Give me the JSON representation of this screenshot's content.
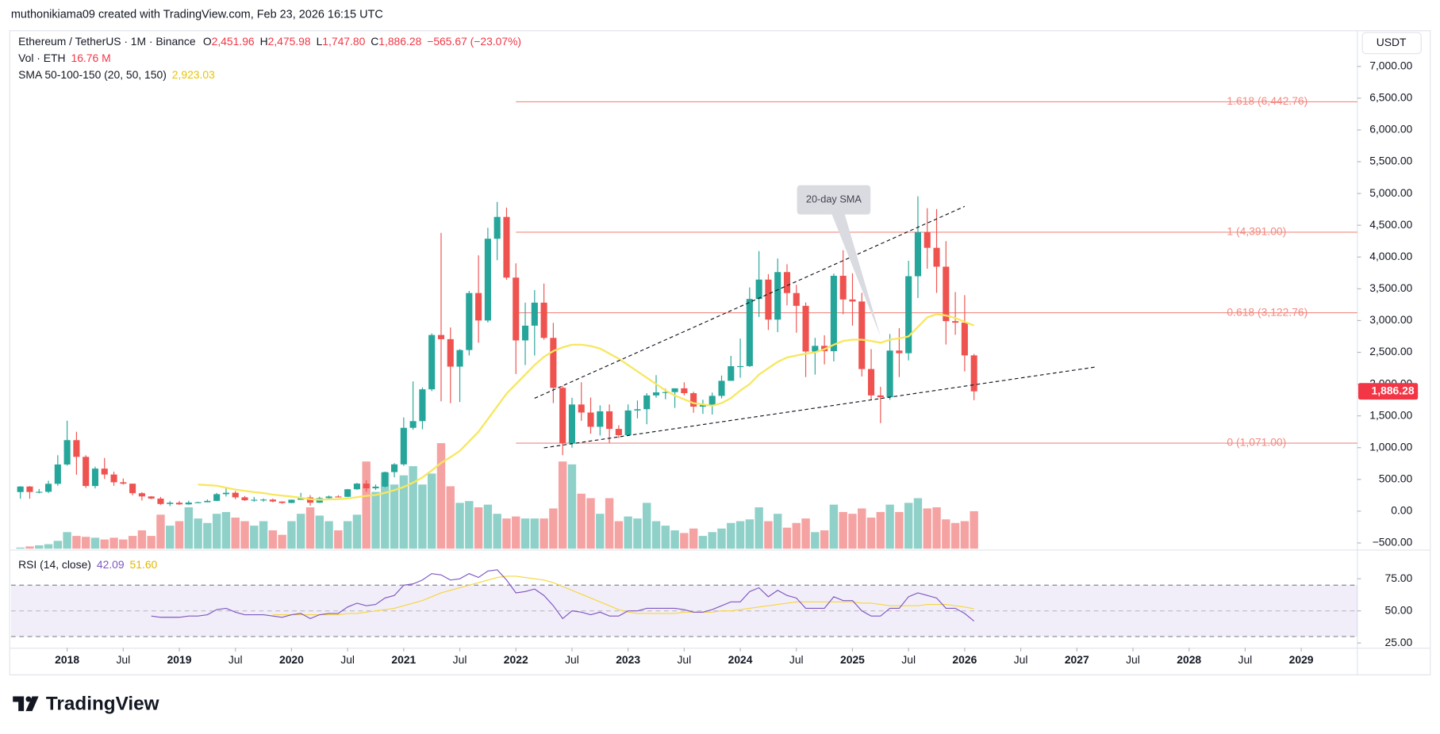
{
  "chart_data": {
    "type": "candlestick",
    "credit": "muthonikiama09 created with TradingView.com, Feb 23, 2026 16:15 UTC",
    "header": {
      "symbol": "Ethereum / TetherUS · 1M · Binance",
      "ohlc": [
        {
          "key": "O",
          "value": "2,451.96"
        },
        {
          "key": "H",
          "value": "2,475.98"
        },
        {
          "key": "L",
          "value": "1,747.80"
        },
        {
          "key": "C",
          "value": "1,886.28"
        }
      ],
      "change": "−565.67 (−23.07%)"
    },
    "currency": "USDT",
    "brand": "TradingView",
    "colors": {
      "up": "#26a69a",
      "down": "#ef5350",
      "up_volume": "#8fd1c9",
      "down_volume": "#f5a3a2"
    },
    "x": [
      "2017-08",
      "2017-09",
      "2017-10",
      "2017-11",
      "2017-12",
      "2018-01",
      "2018-02",
      "2018-03",
      "2018-04",
      "2018-05",
      "2018-06",
      "2018-07",
      "2018-08",
      "2018-09",
      "2018-10",
      "2018-11",
      "2018-12",
      "2019-01",
      "2019-02",
      "2019-03",
      "2019-04",
      "2019-05",
      "2019-06",
      "2019-07",
      "2019-08",
      "2019-09",
      "2019-10",
      "2019-11",
      "2019-12",
      "2020-01",
      "2020-02",
      "2020-03",
      "2020-04",
      "2020-05",
      "2020-06",
      "2020-07",
      "2020-08",
      "2020-09",
      "2020-10",
      "2020-11",
      "2020-12",
      "2021-01",
      "2021-02",
      "2021-03",
      "2021-04",
      "2021-05",
      "2021-06",
      "2021-07",
      "2021-08",
      "2021-09",
      "2021-10",
      "2021-11",
      "2021-12",
      "2022-01",
      "2022-02",
      "2022-03",
      "2022-04",
      "2022-05",
      "2022-06",
      "2022-07",
      "2022-08",
      "2022-09",
      "2022-10",
      "2022-11",
      "2022-12",
      "2023-01",
      "2023-02",
      "2023-03",
      "2023-04",
      "2023-05",
      "2023-06",
      "2023-07",
      "2023-08",
      "2023-09",
      "2023-10",
      "2023-11",
      "2023-12",
      "2024-01",
      "2024-02",
      "2024-03",
      "2024-04",
      "2024-05",
      "2024-06",
      "2024-07",
      "2024-08",
      "2024-09",
      "2024-10",
      "2024-11",
      "2024-12",
      "2025-01",
      "2025-02",
      "2025-03",
      "2025-04",
      "2025-05",
      "2025-06",
      "2025-07",
      "2025-08",
      "2025-09",
      "2025-10",
      "2025-11",
      "2025-12",
      "2026-01",
      "2026-02"
    ],
    "open": [
      301,
      388,
      302,
      305,
      431,
      735,
      1118,
      855,
      396,
      670,
      577,
      455,
      433,
      283,
      232,
      198,
      113,
      133,
      107,
      136,
      141,
      162,
      268,
      290,
      218,
      172,
      180,
      183,
      152,
      129,
      180,
      217,
      133,
      206,
      231,
      226,
      345,
      434,
      360,
      386,
      615,
      737,
      1312,
      1417,
      1918,
      2773,
      2707,
      2275,
      2536,
      3433,
      3001,
      4288,
      4631,
      3676,
      2688,
      2920,
      3282,
      2727,
      1942,
      1067,
      1679,
      1553,
      1328,
      1572,
      1295,
      1196,
      1585,
      1605,
      1822,
      1870,
      1874,
      1934,
      1857,
      1645,
      1671,
      1815,
      2052,
      2282,
      2283,
      3340,
      3645,
      3015,
      3763,
      3433,
      3232,
      2513,
      2602,
      2518,
      3705,
      3332,
      3300,
      2237,
      1822,
      1794,
      2528,
      2486,
      3698,
      4391,
      4145,
      3848,
      2991,
      2967,
      2451.96
    ],
    "high": [
      394,
      395,
      350,
      480,
      881,
      1424,
      1250,
      880,
      700,
      838,
      623,
      516,
      434,
      300,
      236,
      225,
      160,
      160,
      165,
      149,
      185,
      288,
      362,
      317,
      238,
      225,
      200,
      197,
      153,
      183,
      288,
      253,
      227,
      247,
      253,
      350,
      445,
      488,
      420,
      622,
      755,
      1476,
      2042,
      1947,
      2798,
      4380,
      2891,
      2552,
      3466,
      4027,
      4460,
      4868,
      4778,
      3900,
      3282,
      3479,
      3582,
      2964,
      1972,
      1785,
      2030,
      1788,
      1666,
      1680,
      1353,
      1680,
      1743,
      1857,
      2141,
      1928,
      1930,
      2029,
      1880,
      1754,
      1866,
      2134,
      2445,
      2717,
      3522,
      4093,
      3730,
      3977,
      3887,
      3563,
      3285,
      2728,
      2769,
      3740,
      4107,
      3744,
      3436,
      2550,
      1957,
      2788,
      2880,
      3941,
      4956,
      4769,
      4755,
      4250,
      3450,
      3400,
      2475.98
    ],
    "low": [
      196,
      197,
      280,
      285,
      400,
      717,
      574,
      365,
      358,
      508,
      400,
      418,
      250,
      167,
      190,
      100,
      81,
      100,
      101,
      128,
      139,
      158,
      230,
      190,
      162,
      150,
      150,
      141,
      117,
      127,
      179,
      86,
      130,
      178,
      216,
      222,
      334,
      308,
      333,
      374,
      534,
      714,
      1282,
      1290,
      1890,
      1730,
      1700,
      1719,
      2450,
      2651,
      2970,
      3950,
      3643,
      2159,
      2300,
      2450,
      2700,
      1700,
      881,
      1000,
      1422,
      1220,
      1190,
      1073,
      1150,
      1190,
      1461,
      1368,
      1785,
      1762,
      1626,
      1821,
      1550,
      1531,
      1521,
      1775,
      2050,
      2100,
      2270,
      3056,
      2852,
      2817,
      3240,
      2810,
      2111,
      2150,
      2310,
      2357,
      3100,
      2920,
      2120,
      1754,
      1385,
      1752,
      2111,
      2373,
      3355,
      3816,
      3435,
      2623,
      2775,
      2200,
      1747.8
    ],
    "close": [
      388,
      302,
      305,
      431,
      735,
      1118,
      855,
      396,
      670,
      577,
      455,
      433,
      283,
      232,
      198,
      113,
      133,
      107,
      136,
      141,
      162,
      268,
      290,
      218,
      172,
      180,
      183,
      152,
      129,
      180,
      217,
      133,
      206,
      231,
      226,
      345,
      434,
      360,
      386,
      615,
      737,
      1312,
      1417,
      1918,
      2773,
      2707,
      2275,
      2536,
      3433,
      3001,
      4288,
      4631,
      3676,
      2688,
      2920,
      3282,
      2727,
      1942,
      1067,
      1679,
      1553,
      1328,
      1572,
      1295,
      1196,
      1585,
      1605,
      1822,
      1870,
      1874,
      1934,
      1857,
      1645,
      1671,
      1815,
      2052,
      2282,
      2283,
      3340,
      3645,
      3015,
      3763,
      3433,
      3232,
      2513,
      2602,
      2518,
      3705,
      3332,
      3300,
      2237,
      1822,
      1794,
      2528,
      2486,
      3698,
      4391,
      4145,
      3848,
      2991,
      2967,
      2451.96,
      1886.28
    ],
    "volume": {
      "name": "Vol · ETH",
      "value_label": "16.76 M",
      "values": [
        0.5,
        1,
        1.5,
        2,
        3.5,
        7.4,
        5.7,
        5.3,
        4.9,
        4.1,
        4.9,
        4.1,
        5.7,
        8.2,
        5.7,
        15.2,
        10.3,
        12.3,
        18.5,
        13.5,
        11.5,
        15.6,
        16.4,
        13.9,
        12.3,
        10.3,
        12.3,
        8.2,
        6.2,
        12.3,
        15.6,
        18.5,
        14.8,
        12.3,
        8.2,
        12.3,
        15.2,
        39,
        25.4,
        34,
        28.7,
        32.8,
        36.9,
        28.7,
        33.6,
        47.2,
        27.9,
        20.5,
        21.3,
        18.5,
        19.7,
        15.6,
        13.5,
        14.4,
        13.5,
        13.5,
        13.5,
        18,
        39,
        37.7,
        24.6,
        22.6,
        15.6,
        22.6,
        12.3,
        14.4,
        13.5,
        20.5,
        12.3,
        10.3,
        8.2,
        7,
        9,
        5.7,
        7.4,
        9,
        11.5,
        12.3,
        13.1,
        18.5,
        12.3,
        15.6,
        9.4,
        11.5,
        13.5,
        7.4,
        8.2,
        19.7,
        16.4,
        15.6,
        18,
        13.9,
        16.4,
        19.7,
        16.4,
        20.5,
        22.6,
        18,
        18.5,
        13.1,
        11.5,
        12.3,
        16.76
      ]
    },
    "sma": {
      "name": "SMA 50-100-150 (20, 50, 150)",
      "value_label": "2,923.03",
      "color": "#f7e75e",
      "values": [
        null,
        null,
        null,
        null,
        null,
        null,
        null,
        null,
        null,
        null,
        null,
        null,
        null,
        null,
        null,
        null,
        null,
        null,
        null,
        420,
        410,
        400,
        370,
        340,
        320,
        300,
        285,
        260,
        245,
        230,
        210,
        190,
        180,
        185,
        190,
        200,
        220,
        240,
        255,
        290,
        330,
        380,
        450,
        530,
        640,
        760,
        850,
        950,
        1100,
        1250,
        1450,
        1650,
        1850,
        2000,
        2150,
        2300,
        2430,
        2520,
        2580,
        2620,
        2620,
        2600,
        2560,
        2480,
        2400,
        2300,
        2200,
        2100,
        2000,
        1900,
        1820,
        1760,
        1700,
        1680,
        1660,
        1700,
        1780,
        1900,
        2000,
        2150,
        2250,
        2350,
        2420,
        2450,
        2480,
        2500,
        2550,
        2620,
        2680,
        2700,
        2700,
        2680,
        2650,
        2700,
        2720,
        2750,
        2900,
        3050,
        3100,
        3080,
        3040,
        2980,
        2923.03
      ]
    },
    "xlim": [
      "2017-07",
      "2029-07"
    ],
    "xticks": [
      {
        "value": "2018-01",
        "label": "2018"
      },
      {
        "value": "2018-07",
        "label": "Jul"
      },
      {
        "value": "2019-01",
        "label": "2019"
      },
      {
        "value": "2019-07",
        "label": "Jul"
      },
      {
        "value": "2020-01",
        "label": "2020"
      },
      {
        "value": "2020-07",
        "label": "Jul"
      },
      {
        "value": "2021-01",
        "label": "2021"
      },
      {
        "value": "2021-07",
        "label": "Jul"
      },
      {
        "value": "2022-01",
        "label": "2022"
      },
      {
        "value": "2022-07",
        "label": "Jul"
      },
      {
        "value": "2023-01",
        "label": "2023"
      },
      {
        "value": "2023-07",
        "label": "Jul"
      },
      {
        "value": "2024-01",
        "label": "2024"
      },
      {
        "value": "2024-07",
        "label": "Jul"
      },
      {
        "value": "2025-01",
        "label": "2025"
      },
      {
        "value": "2025-07",
        "label": "Jul"
      },
      {
        "value": "2026-01",
        "label": "2026"
      },
      {
        "value": "2026-07",
        "label": "Jul"
      },
      {
        "value": "2027-01",
        "label": "2027"
      },
      {
        "value": "2027-07",
        "label": "Jul"
      },
      {
        "value": "2028-01",
        "label": "2028"
      },
      {
        "value": "2028-07",
        "label": "Jul"
      },
      {
        "value": "2029-01",
        "label": "2029"
      }
    ],
    "ylim": [
      -590,
      7540
    ],
    "yticks": [
      {
        "value": -500,
        "label": "−500.00"
      },
      {
        "value": 0,
        "label": "0.00"
      },
      {
        "value": 500,
        "label": "500.00"
      },
      {
        "value": 1000,
        "label": "1,000.00"
      },
      {
        "value": 1500,
        "label": "1,500.00"
      },
      {
        "value": 2000,
        "label": "2,000.00"
      },
      {
        "value": 2500,
        "label": "2,500.00"
      },
      {
        "value": 3000,
        "label": "3,000.00"
      },
      {
        "value": 3500,
        "label": "3,500.00"
      },
      {
        "value": 4000,
        "label": "4,000.00"
      },
      {
        "value": 4500,
        "label": "4,500.00"
      },
      {
        "value": 5000,
        "label": "5,000.00"
      },
      {
        "value": 5500,
        "label": "5,500.00"
      },
      {
        "value": 6000,
        "label": "6,000.00"
      },
      {
        "value": 6500,
        "label": "6,500.00"
      },
      {
        "value": 7000,
        "label": "7,000.00"
      }
    ],
    "fib_start": "2022-01",
    "fib_levels": [
      {
        "value": 6442.76,
        "label": "1.618 (6,442.76)"
      },
      {
        "value": 4391,
        "label": "1 (4,391.00)"
      },
      {
        "value": 3122.76,
        "label": "0.618 (3,122.76)"
      },
      {
        "value": 1071,
        "label": "0 (1,071.00)"
      }
    ],
    "trendlines": [
      {
        "x": [
          "2022-03",
          "2026-01"
        ],
        "y": [
          1777,
          4797
        ]
      },
      {
        "x": [
          "2022-04",
          "2027-03"
        ],
        "y": [
          997,
          2269
        ]
      }
    ],
    "annotation": {
      "text": "20-day SMA",
      "x": "2024-11",
      "y": 4900,
      "target_x": "2025-04",
      "target_y": 2750
    },
    "rsi": {
      "name": "RSI (14, close)",
      "value_label": "42.09",
      "color": "#7e57c2",
      "values": [
        null,
        null,
        null,
        null,
        null,
        null,
        null,
        null,
        null,
        null,
        null,
        null,
        null,
        null,
        46,
        45,
        45,
        45,
        46,
        46,
        47,
        51,
        52,
        49,
        47,
        47,
        47,
        46,
        45,
        47,
        48,
        44,
        47,
        48,
        48,
        53,
        56,
        54,
        55,
        60,
        62,
        70,
        71,
        74,
        79,
        78,
        74,
        75,
        79,
        76,
        81,
        82,
        74,
        64,
        65,
        67,
        62,
        54,
        44,
        50,
        49,
        47,
        49,
        46,
        46,
        50,
        50,
        52,
        52,
        52,
        52,
        51,
        49,
        49,
        51,
        54,
        57,
        57,
        65,
        68,
        61,
        66,
        62,
        60,
        52,
        52,
        52,
        61,
        58,
        58,
        50,
        46,
        46,
        52,
        52,
        61,
        64,
        62,
        60,
        52,
        52,
        48,
        42.09
      ]
    },
    "rsi_ma": {
      "value_label": "51.60",
      "color": "#f5d63d",
      "values": [
        null,
        null,
        null,
        null,
        null,
        null,
        null,
        null,
        null,
        null,
        null,
        null,
        null,
        null,
        null,
        null,
        null,
        null,
        null,
        null,
        null,
        null,
        null,
        null,
        null,
        null,
        null,
        47,
        47,
        47,
        47,
        47,
        47,
        47,
        47,
        48,
        48,
        49,
        50,
        51,
        52,
        54,
        56,
        58,
        61,
        64,
        66,
        68,
        70,
        72,
        74,
        76,
        77,
        77,
        76,
        75,
        74,
        72,
        69,
        66,
        63,
        60,
        57,
        54,
        51,
        49,
        48,
        48,
        48,
        48,
        48,
        49,
        49,
        49,
        49,
        50,
        50,
        51,
        52,
        53,
        54,
        55,
        56,
        57,
        57,
        57,
        57,
        57,
        57,
        57,
        56,
        56,
        55,
        54,
        54,
        54,
        54,
        55,
        55,
        55,
        54,
        53,
        51.6
      ]
    },
    "rsi_ylim": [
      22,
      97
    ],
    "rsi_yticks": [
      {
        "value": 25,
        "label": "25.00"
      },
      {
        "value": 50,
        "label": "50.00"
      },
      {
        "value": 75,
        "label": "75.00"
      }
    ],
    "rsi_bands": [
      30,
      50,
      70
    ]
  }
}
